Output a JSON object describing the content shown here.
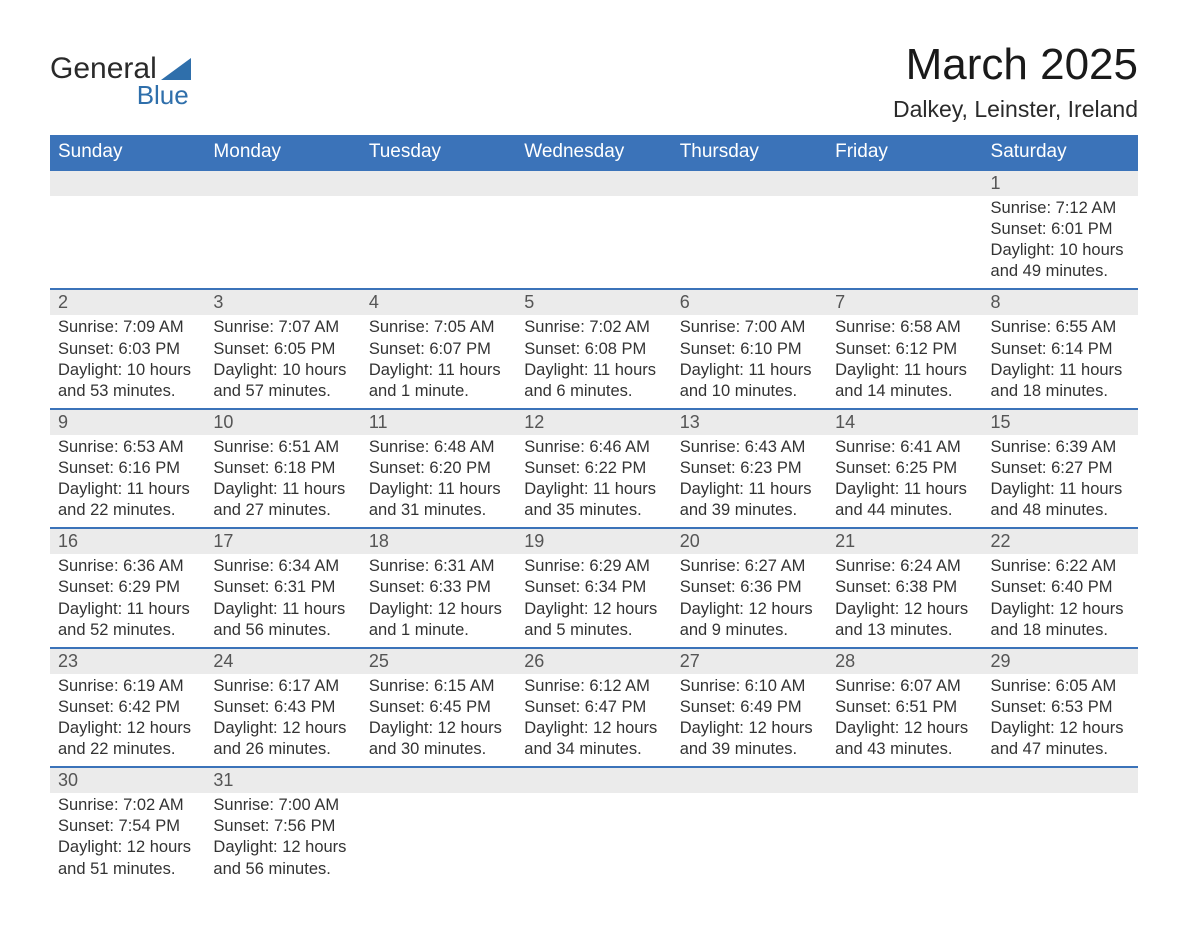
{
  "logo": {
    "line1": "General",
    "line2": "Blue"
  },
  "title": "March 2025",
  "location": "Dalkey, Leinster, Ireland",
  "weekday_labels": [
    "Sunday",
    "Monday",
    "Tuesday",
    "Wednesday",
    "Thursday",
    "Friday",
    "Saturday"
  ],
  "colors": {
    "header_bg": "#3b73b9",
    "header_text": "#ffffff",
    "daynum_bg": "#ebebeb",
    "row_divider": "#3b73b9",
    "body_text": "#333333",
    "logo_blue": "#2f6fab"
  },
  "start_weekday_index": 6,
  "days": [
    {
      "n": 1,
      "sunrise": "7:12 AM",
      "sunset": "6:01 PM",
      "daylight": "10 hours and 49 minutes."
    },
    {
      "n": 2,
      "sunrise": "7:09 AM",
      "sunset": "6:03 PM",
      "daylight": "10 hours and 53 minutes."
    },
    {
      "n": 3,
      "sunrise": "7:07 AM",
      "sunset": "6:05 PM",
      "daylight": "10 hours and 57 minutes."
    },
    {
      "n": 4,
      "sunrise": "7:05 AM",
      "sunset": "6:07 PM",
      "daylight": "11 hours and 1 minute."
    },
    {
      "n": 5,
      "sunrise": "7:02 AM",
      "sunset": "6:08 PM",
      "daylight": "11 hours and 6 minutes."
    },
    {
      "n": 6,
      "sunrise": "7:00 AM",
      "sunset": "6:10 PM",
      "daylight": "11 hours and 10 minutes."
    },
    {
      "n": 7,
      "sunrise": "6:58 AM",
      "sunset": "6:12 PM",
      "daylight": "11 hours and 14 minutes."
    },
    {
      "n": 8,
      "sunrise": "6:55 AM",
      "sunset": "6:14 PM",
      "daylight": "11 hours and 18 minutes."
    },
    {
      "n": 9,
      "sunrise": "6:53 AM",
      "sunset": "6:16 PM",
      "daylight": "11 hours and 22 minutes."
    },
    {
      "n": 10,
      "sunrise": "6:51 AM",
      "sunset": "6:18 PM",
      "daylight": "11 hours and 27 minutes."
    },
    {
      "n": 11,
      "sunrise": "6:48 AM",
      "sunset": "6:20 PM",
      "daylight": "11 hours and 31 minutes."
    },
    {
      "n": 12,
      "sunrise": "6:46 AM",
      "sunset": "6:22 PM",
      "daylight": "11 hours and 35 minutes."
    },
    {
      "n": 13,
      "sunrise": "6:43 AM",
      "sunset": "6:23 PM",
      "daylight": "11 hours and 39 minutes."
    },
    {
      "n": 14,
      "sunrise": "6:41 AM",
      "sunset": "6:25 PM",
      "daylight": "11 hours and 44 minutes."
    },
    {
      "n": 15,
      "sunrise": "6:39 AM",
      "sunset": "6:27 PM",
      "daylight": "11 hours and 48 minutes."
    },
    {
      "n": 16,
      "sunrise": "6:36 AM",
      "sunset": "6:29 PM",
      "daylight": "11 hours and 52 minutes."
    },
    {
      "n": 17,
      "sunrise": "6:34 AM",
      "sunset": "6:31 PM",
      "daylight": "11 hours and 56 minutes."
    },
    {
      "n": 18,
      "sunrise": "6:31 AM",
      "sunset": "6:33 PM",
      "daylight": "12 hours and 1 minute."
    },
    {
      "n": 19,
      "sunrise": "6:29 AM",
      "sunset": "6:34 PM",
      "daylight": "12 hours and 5 minutes."
    },
    {
      "n": 20,
      "sunrise": "6:27 AM",
      "sunset": "6:36 PM",
      "daylight": "12 hours and 9 minutes."
    },
    {
      "n": 21,
      "sunrise": "6:24 AM",
      "sunset": "6:38 PM",
      "daylight": "12 hours and 13 minutes."
    },
    {
      "n": 22,
      "sunrise": "6:22 AM",
      "sunset": "6:40 PM",
      "daylight": "12 hours and 18 minutes."
    },
    {
      "n": 23,
      "sunrise": "6:19 AM",
      "sunset": "6:42 PM",
      "daylight": "12 hours and 22 minutes."
    },
    {
      "n": 24,
      "sunrise": "6:17 AM",
      "sunset": "6:43 PM",
      "daylight": "12 hours and 26 minutes."
    },
    {
      "n": 25,
      "sunrise": "6:15 AM",
      "sunset": "6:45 PM",
      "daylight": "12 hours and 30 minutes."
    },
    {
      "n": 26,
      "sunrise": "6:12 AM",
      "sunset": "6:47 PM",
      "daylight": "12 hours and 34 minutes."
    },
    {
      "n": 27,
      "sunrise": "6:10 AM",
      "sunset": "6:49 PM",
      "daylight": "12 hours and 39 minutes."
    },
    {
      "n": 28,
      "sunrise": "6:07 AM",
      "sunset": "6:51 PM",
      "daylight": "12 hours and 43 minutes."
    },
    {
      "n": 29,
      "sunrise": "6:05 AM",
      "sunset": "6:53 PM",
      "daylight": "12 hours and 47 minutes."
    },
    {
      "n": 30,
      "sunrise": "7:02 AM",
      "sunset": "7:54 PM",
      "daylight": "12 hours and 51 minutes."
    },
    {
      "n": 31,
      "sunrise": "7:00 AM",
      "sunset": "7:56 PM",
      "daylight": "12 hours and 56 minutes."
    }
  ],
  "labels": {
    "sunrise_prefix": "Sunrise: ",
    "sunset_prefix": "Sunset: ",
    "daylight_prefix": "Daylight: "
  }
}
